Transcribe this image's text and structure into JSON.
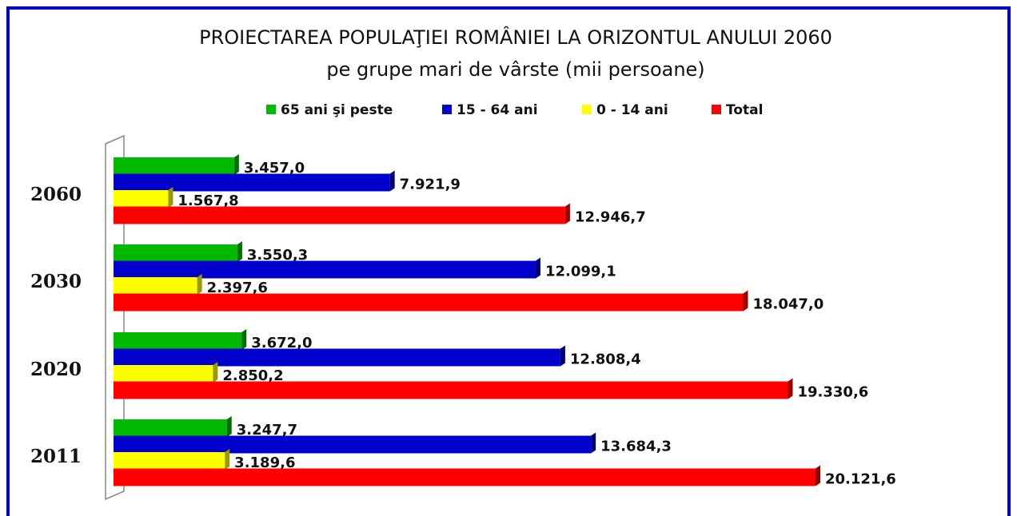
{
  "chart_data": {
    "type": "bar",
    "orientation": "horizontal",
    "title": "PROIECTAREA POPULAŢIEI ROMÂNIEI LA ORIZONTUL ANULUI 2060",
    "subtitle": "pe grupe mari de vârste (mii persoane)",
    "categories": [
      "2060",
      "2030",
      "2020",
      "2011"
    ],
    "series": [
      {
        "name": "65 ani şi peste",
        "color": "#00b800",
        "values": [
          3457.0,
          3550.3,
          3672.0,
          3247.7
        ],
        "value_labels": [
          "3.457,0",
          "3.550,3",
          "3.672,0",
          "3.247,7"
        ]
      },
      {
        "name": "15 - 64 ani",
        "color": "#0000cc",
        "values": [
          7921.9,
          12099.1,
          12808.4,
          13684.3
        ],
        "value_labels": [
          "7.921,9",
          "12.099,1",
          "12.808,4",
          "13.684,3"
        ]
      },
      {
        "name": "0 - 14 ani",
        "color": "#ffff00",
        "values": [
          1567.8,
          2397.6,
          2850.2,
          3189.6
        ],
        "value_labels": [
          "1.567,8",
          "2.397,6",
          "2.850,2",
          "3.189,6"
        ]
      },
      {
        "name": "Total",
        "color": "#ff0000",
        "values": [
          12946.7,
          18047.0,
          19330.6,
          20121.6
        ],
        "value_labels": [
          "12.946,7",
          "18.047,0",
          "19.330,6",
          "20.121,6"
        ]
      }
    ],
    "legend": "top"
  }
}
